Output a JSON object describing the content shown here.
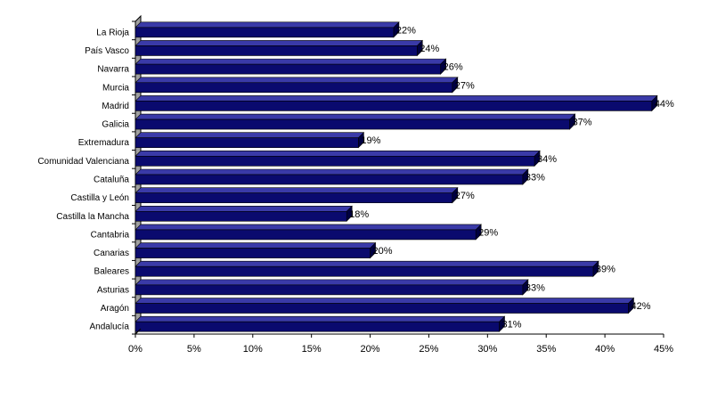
{
  "chart_data": {
    "type": "bar",
    "orientation": "horizontal",
    "style": "3d",
    "categories": [
      "La Rioja",
      "País Vasco",
      "Navarra",
      "Murcia",
      "Madrid",
      "Galicia",
      "Extremadura",
      "Comunidad Valenciana",
      "Cataluña",
      "Castilla y León",
      "Castilla la Mancha",
      "Cantabria",
      "Canarias",
      "Baleares",
      "Asturias",
      "Aragón",
      "Andalucía"
    ],
    "values": [
      22,
      24,
      26,
      27,
      44,
      37,
      19,
      34,
      33,
      27,
      18,
      29,
      20,
      39,
      33,
      42,
      31
    ],
    "data_labels": [
      "22%",
      "24%",
      "26%",
      "27%",
      "44%",
      "37%",
      "19%",
      "34%",
      "33%",
      "27%",
      "18%",
      "29%",
      " 20%",
      "39%",
      "33%",
      "42%",
      "31%"
    ],
    "xlim": [
      0,
      45
    ],
    "x_ticks": [
      0,
      5,
      10,
      15,
      20,
      25,
      30,
      35,
      40,
      45
    ],
    "x_tick_labels": [
      "0%",
      "5%",
      "10%",
      "15%",
      "20%",
      "25%",
      "30%",
      "35%",
      "40%",
      "45%"
    ],
    "grid": false,
    "legend": "none",
    "colors": {
      "bar_front": "#0a0a6e",
      "bar_top": "#3a3aa8",
      "bar_side": "#000040",
      "wall": "#a0a0a0",
      "axis": "#000000"
    }
  }
}
